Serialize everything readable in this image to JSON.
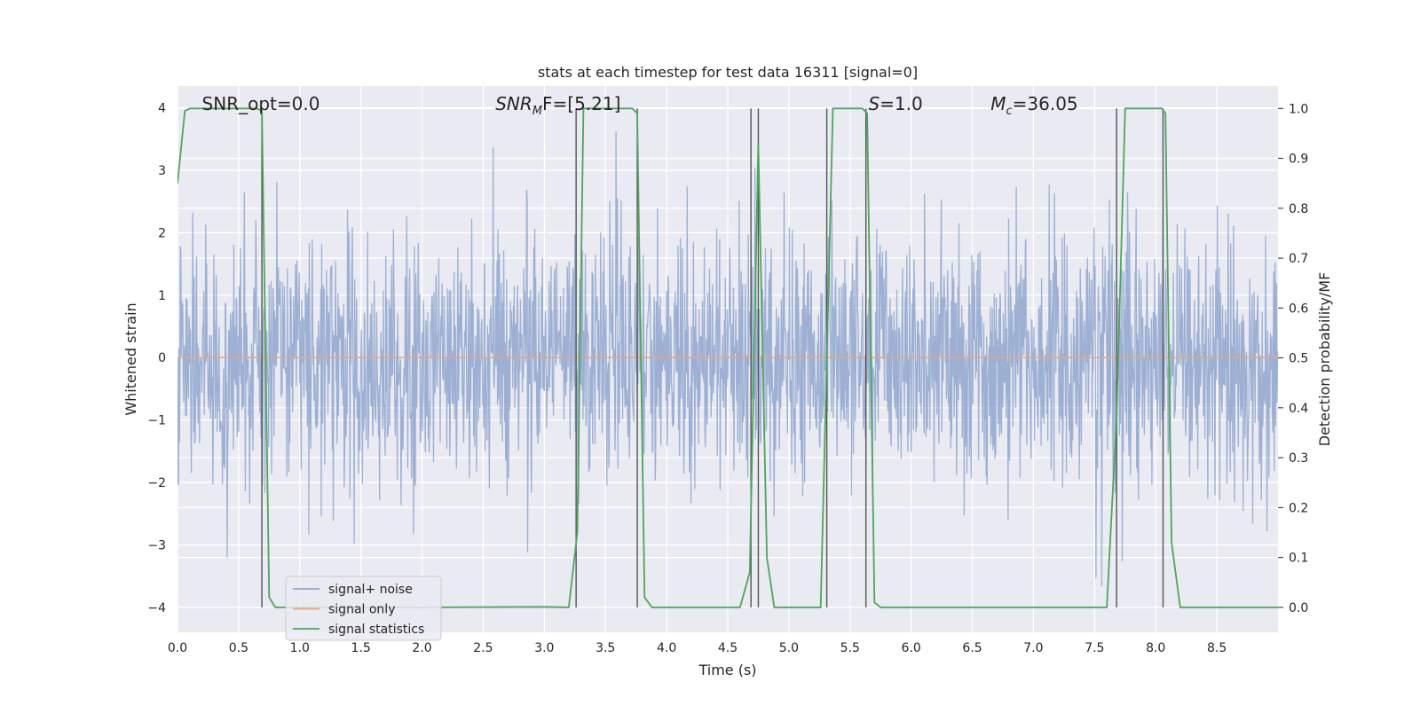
{
  "chart_data": {
    "type": "line",
    "title": "stats at each timestep for test data 16311 [signal=0]",
    "xlabel": "Time (s)",
    "ylabel": "Whitened strain",
    "y2label": "Detection probability/MF",
    "xlim": [
      0.0,
      9.0
    ],
    "ylim": [
      -4.4,
      4.35
    ],
    "y2lim": [
      -0.05,
      1.045
    ],
    "x_ticks": [
      "0.0",
      "0.5",
      "1.0",
      "1.5",
      "2.0",
      "2.5",
      "3.0",
      "3.5",
      "4.0",
      "4.5",
      "5.0",
      "5.5",
      "6.0",
      "6.5",
      "7.0",
      "7.5",
      "8.0",
      "8.5"
    ],
    "y_ticks": [
      "−4",
      "−3",
      "−2",
      "−1",
      "0",
      "1",
      "2",
      "3",
      "4"
    ],
    "y2_ticks": [
      "0.0",
      "0.1",
      "0.2",
      "0.3",
      "0.4",
      "0.5",
      "0.6",
      "0.7",
      "0.8",
      "0.9",
      "1.0"
    ],
    "grid": true,
    "legend_placement": "lower-left",
    "annotations": [
      {
        "text": "SNR_opt=0.0",
        "x": 0.2
      },
      {
        "main": "SNR",
        "sub": "M",
        "rest": "F=[5.21]",
        "x": 2.6
      },
      {
        "main": "S",
        "rest": "=1.0",
        "x": 5.65
      },
      {
        "main": "M",
        "sub": "c",
        "rest": "=36.05",
        "x": 6.65
      }
    ],
    "series": [
      {
        "name": "signal+ noise",
        "color": "#8fa6cf",
        "axis": "left",
        "noise_seed": 16311,
        "sample_rate": 256,
        "sigma": 1.0
      },
      {
        "name": "signal only",
        "color": "#e5a57e",
        "axis": "left",
        "x": [
          0.0,
          9.0
        ],
        "y": [
          0.0,
          0.0
        ]
      },
      {
        "name": "signal statistics",
        "color": "#4ea55b",
        "axis": "right",
        "x": [
          0.0,
          0.06,
          0.1,
          0.65,
          0.69,
          0.75,
          0.8,
          1.0,
          2.0,
          3.0,
          3.2,
          3.27,
          3.32,
          3.37,
          3.72,
          3.76,
          3.82,
          3.88,
          4.0,
          4.6,
          4.68,
          4.75,
          4.82,
          4.88,
          5.0,
          5.26,
          5.36,
          5.6,
          5.64,
          5.7,
          5.75,
          6.0,
          7.0,
          7.6,
          7.68,
          7.75,
          8.05,
          8.08,
          8.13,
          8.2,
          8.5,
          9.0
        ],
        "y": [
          0.85,
          0.995,
          1.0,
          1.0,
          0.995,
          0.02,
          0.0,
          0.0,
          0.0,
          0.001,
          0.0,
          0.15,
          1.0,
          1.0,
          1.0,
          0.99,
          0.02,
          0.0,
          0.0,
          0.0,
          0.07,
          0.93,
          0.1,
          0.0,
          0.0,
          0.0,
          1.0,
          1.0,
          0.99,
          0.01,
          0.0,
          0.0,
          0.0,
          0.0,
          0.38,
          1.0,
          1.0,
          0.99,
          0.13,
          0.0,
          0.0,
          0.0
        ]
      }
    ],
    "vertical_markers": [
      0.69,
      3.26,
      3.76,
      4.69,
      4.75,
      5.31,
      5.63,
      7.68,
      8.06
    ]
  }
}
